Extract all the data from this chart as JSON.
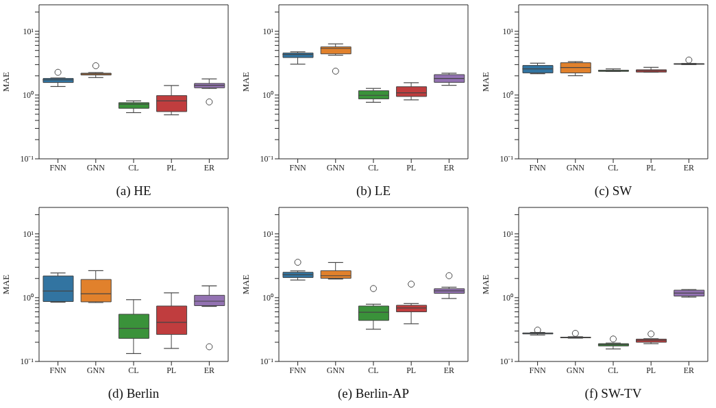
{
  "chart_data": [
    {
      "type": "box",
      "title": "(a) HE",
      "ylabel": "MAE",
      "log": true,
      "categories": [
        "FNN",
        "GNN",
        "CL",
        "PL",
        "ER"
      ],
      "colors": [
        "#3274a1",
        "#e1812c",
        "#3a923a",
        "#c03d3e",
        "#9372b2"
      ],
      "ylim": [
        0.1,
        26
      ],
      "yticks": [
        {
          "value": 0.1,
          "label": "10⁻¹"
        },
        {
          "value": 0.2,
          "label": null
        },
        {
          "value": 0.3,
          "label": null
        },
        {
          "value": 0.4,
          "label": null
        },
        {
          "value": 0.5,
          "label": null
        },
        {
          "value": 0.6,
          "label": null
        },
        {
          "value": 0.7,
          "label": null
        },
        {
          "value": 0.8,
          "label": null
        },
        {
          "value": 0.9,
          "label": null
        },
        {
          "value": 1,
          "label": "10⁰"
        },
        {
          "value": 2,
          "label": null
        },
        {
          "value": 3,
          "label": null
        },
        {
          "value": 4,
          "label": null
        },
        {
          "value": 5,
          "label": null
        },
        {
          "value": 6,
          "label": null
        },
        {
          "value": 7,
          "label": null
        },
        {
          "value": 8,
          "label": null
        },
        {
          "value": 9,
          "label": null
        },
        {
          "value": 10,
          "label": "10¹"
        },
        {
          "value": 20,
          "label": null
        }
      ],
      "boxes": [
        {
          "low": 1.36,
          "q1": 1.57,
          "median": 1.73,
          "q3": 1.82,
          "high": 1.85,
          "outliers": [
            2.27
          ]
        },
        {
          "low": 1.88,
          "q1": 2.06,
          "median": 2.15,
          "q3": 2.2,
          "high": 2.25,
          "outliers": [
            2.88
          ]
        },
        {
          "low": 0.53,
          "q1": 0.62,
          "median": 0.72,
          "q3": 0.76,
          "high": 0.81
        },
        {
          "low": 0.49,
          "q1": 0.55,
          "median": 0.81,
          "q3": 0.98,
          "high": 1.41
        },
        {
          "low": 1.27,
          "q1": 1.3,
          "median": 1.42,
          "q3": 1.52,
          "high": 1.79,
          "outliers": [
            0.78
          ]
        }
      ]
    },
    {
      "type": "box",
      "title": "(b) LE",
      "ylabel": "MAE",
      "log": true,
      "categories": [
        "FNN",
        "GNN",
        "CL",
        "PL",
        "ER"
      ],
      "colors": [
        "#3274a1",
        "#e1812c",
        "#3a923a",
        "#c03d3e",
        "#9372b2"
      ],
      "ylim": [
        0.1,
        26
      ],
      "yticks": [
        {
          "value": 0.1,
          "label": "10⁻¹"
        },
        {
          "value": 0.2,
          "label": null
        },
        {
          "value": 0.3,
          "label": null
        },
        {
          "value": 0.4,
          "label": null
        },
        {
          "value": 0.5,
          "label": null
        },
        {
          "value": 0.6,
          "label": null
        },
        {
          "value": 0.7,
          "label": null
        },
        {
          "value": 0.8,
          "label": null
        },
        {
          "value": 0.9,
          "label": null
        },
        {
          "value": 1,
          "label": "10⁰"
        },
        {
          "value": 2,
          "label": null
        },
        {
          "value": 3,
          "label": null
        },
        {
          "value": 4,
          "label": null
        },
        {
          "value": 5,
          "label": null
        },
        {
          "value": 6,
          "label": null
        },
        {
          "value": 7,
          "label": null
        },
        {
          "value": 8,
          "label": null
        },
        {
          "value": 9,
          "label": null
        },
        {
          "value": 10,
          "label": "10¹"
        },
        {
          "value": 20,
          "label": null
        }
      ],
      "boxes": [
        {
          "low": 3.05,
          "q1": 3.87,
          "median": 4.31,
          "q3": 4.57,
          "high": 4.76
        },
        {
          "low": 4.21,
          "q1": 4.42,
          "median": 5.38,
          "q3": 5.7,
          "high": 6.34,
          "outliers": [
            2.37
          ]
        },
        {
          "low": 0.77,
          "q1": 0.87,
          "median": 0.99,
          "q3": 1.17,
          "high": 1.27
        },
        {
          "low": 0.84,
          "q1": 0.95,
          "median": 1.08,
          "q3": 1.35,
          "high": 1.56
        },
        {
          "low": 1.42,
          "q1": 1.58,
          "median": 1.82,
          "q3": 2.09,
          "high": 2.2
        }
      ]
    },
    {
      "type": "box",
      "title": "(c) SW",
      "ylabel": "MAE",
      "log": true,
      "categories": [
        "FNN",
        "GNN",
        "CL",
        "PL",
        "ER"
      ],
      "colors": [
        "#3274a1",
        "#e1812c",
        "#3a923a",
        "#c03d3e",
        "#9372b2"
      ],
      "ylim": [
        0.1,
        26
      ],
      "yticks": [
        {
          "value": 0.1,
          "label": "10⁻¹"
        },
        {
          "value": 0.2,
          "label": null
        },
        {
          "value": 0.3,
          "label": null
        },
        {
          "value": 0.4,
          "label": null
        },
        {
          "value": 0.5,
          "label": null
        },
        {
          "value": 0.6,
          "label": null
        },
        {
          "value": 0.7,
          "label": null
        },
        {
          "value": 0.8,
          "label": null
        },
        {
          "value": 0.9,
          "label": null
        },
        {
          "value": 1,
          "label": "10⁰"
        },
        {
          "value": 2,
          "label": null
        },
        {
          "value": 3,
          "label": null
        },
        {
          "value": 4,
          "label": null
        },
        {
          "value": 5,
          "label": null
        },
        {
          "value": 6,
          "label": null
        },
        {
          "value": 7,
          "label": null
        },
        {
          "value": 8,
          "label": null
        },
        {
          "value": 9,
          "label": null
        },
        {
          "value": 10,
          "label": "10¹"
        },
        {
          "value": 20,
          "label": null
        }
      ],
      "boxes": [
        {
          "low": 2.16,
          "q1": 2.22,
          "median": 2.57,
          "q3": 2.91,
          "high": 3.16
        },
        {
          "low": 2.01,
          "q1": 2.22,
          "median": 2.7,
          "q3": 3.21,
          "high": 3.34
        },
        {
          "low": 2.34,
          "q1": 2.35,
          "median": 2.41,
          "q3": 2.45,
          "high": 2.57
        },
        {
          "low": 2.28,
          "q1": 2.29,
          "median": 2.41,
          "q3": 2.49,
          "high": 2.72
        },
        {
          "low": 3.0,
          "q1": 3.03,
          "median": 3.08,
          "q3": 3.1,
          "high": 3.13,
          "outliers": [
            3.54
          ]
        }
      ]
    },
    {
      "type": "box",
      "title": "(d) Berlin",
      "ylabel": "MAE",
      "log": true,
      "categories": [
        "FNN",
        "GNN",
        "CL",
        "PL",
        "ER"
      ],
      "colors": [
        "#3274a1",
        "#e1812c",
        "#3a923a",
        "#c03d3e",
        "#9372b2"
      ],
      "ylim": [
        0.1,
        26
      ],
      "yticks": [
        {
          "value": 0.1,
          "label": "10⁻¹"
        },
        {
          "value": 0.2,
          "label": null
        },
        {
          "value": 0.3,
          "label": null
        },
        {
          "value": 0.4,
          "label": null
        },
        {
          "value": 0.5,
          "label": null
        },
        {
          "value": 0.6,
          "label": null
        },
        {
          "value": 0.7,
          "label": null
        },
        {
          "value": 0.8,
          "label": null
        },
        {
          "value": 0.9,
          "label": null
        },
        {
          "value": 1,
          "label": "10⁰"
        },
        {
          "value": 2,
          "label": null
        },
        {
          "value": 3,
          "label": null
        },
        {
          "value": 4,
          "label": null
        },
        {
          "value": 5,
          "label": null
        },
        {
          "value": 6,
          "label": null
        },
        {
          "value": 7,
          "label": null
        },
        {
          "value": 8,
          "label": null
        },
        {
          "value": 9,
          "label": null
        },
        {
          "value": 10,
          "label": "10¹"
        },
        {
          "value": 20,
          "label": null
        }
      ],
      "boxes": [
        {
          "low": 0.85,
          "q1": 0.87,
          "median": 1.27,
          "q3": 2.19,
          "high": 2.44
        },
        {
          "low": 0.84,
          "q1": 0.86,
          "median": 1.15,
          "q3": 1.93,
          "high": 2.65
        },
        {
          "low": 0.133,
          "q1": 0.23,
          "median": 0.33,
          "q3": 0.55,
          "high": 0.93
        },
        {
          "low": 0.16,
          "q1": 0.265,
          "median": 0.41,
          "q3": 0.74,
          "high": 1.19
        },
        {
          "low": 0.73,
          "q1": 0.75,
          "median": 0.88,
          "q3": 1.09,
          "high": 1.53,
          "outliers": [
            0.17
          ]
        }
      ]
    },
    {
      "type": "box",
      "title": "(e) Berlin-AP",
      "ylabel": "MAE",
      "log": true,
      "categories": [
        "FNN",
        "GNN",
        "CL",
        "PL",
        "ER"
      ],
      "colors": [
        "#3274a1",
        "#e1812c",
        "#3a923a",
        "#c03d3e",
        "#9372b2"
      ],
      "ylim": [
        0.1,
        26
      ],
      "yticks": [
        {
          "value": 0.1,
          "label": "10⁻¹"
        },
        {
          "value": 0.2,
          "label": null
        },
        {
          "value": 0.3,
          "label": null
        },
        {
          "value": 0.4,
          "label": null
        },
        {
          "value": 0.5,
          "label": null
        },
        {
          "value": 0.6,
          "label": null
        },
        {
          "value": 0.7,
          "label": null
        },
        {
          "value": 0.8,
          "label": null
        },
        {
          "value": 0.9,
          "label": null
        },
        {
          "value": 1,
          "label": "10⁰"
        },
        {
          "value": 2,
          "label": null
        },
        {
          "value": 3,
          "label": null
        },
        {
          "value": 4,
          "label": null
        },
        {
          "value": 5,
          "label": null
        },
        {
          "value": 6,
          "label": null
        },
        {
          "value": 7,
          "label": null
        },
        {
          "value": 8,
          "label": null
        },
        {
          "value": 9,
          "label": null
        },
        {
          "value": 10,
          "label": "10¹"
        },
        {
          "value": 20,
          "label": null
        }
      ],
      "boxes": [
        {
          "low": 1.89,
          "q1": 2.07,
          "median": 2.29,
          "q3": 2.5,
          "high": 2.63,
          "outliers": [
            3.59
          ]
        },
        {
          "low": 1.96,
          "q1": 2.01,
          "median": 2.21,
          "q3": 2.65,
          "high": 3.56
        },
        {
          "low": 0.32,
          "q1": 0.44,
          "median": 0.59,
          "q3": 0.74,
          "high": 0.79,
          "outliers": [
            1.39
          ]
        },
        {
          "low": 0.39,
          "q1": 0.6,
          "median": 0.69,
          "q3": 0.76,
          "high": 0.81,
          "outliers": [
            1.63
          ]
        },
        {
          "low": 0.97,
          "q1": 1.17,
          "median": 1.28,
          "q3": 1.38,
          "high": 1.46,
          "outliers": [
            2.21
          ]
        }
      ]
    },
    {
      "type": "box",
      "title": "(f) SW-TV",
      "ylabel": "MAE",
      "log": true,
      "categories": [
        "FNN",
        "GNN",
        "CL",
        "PL",
        "ER"
      ],
      "colors": [
        "#3274a1",
        "#e1812c",
        "#3a923a",
        "#c03d3e",
        "#9372b2"
      ],
      "ylim": [
        0.1,
        26
      ],
      "yticks": [
        {
          "value": 0.1,
          "label": "10⁻¹"
        },
        {
          "value": 0.2,
          "label": null
        },
        {
          "value": 0.3,
          "label": null
        },
        {
          "value": 0.4,
          "label": null
        },
        {
          "value": 0.5,
          "label": null
        },
        {
          "value": 0.6,
          "label": null
        },
        {
          "value": 0.7,
          "label": null
        },
        {
          "value": 0.8,
          "label": null
        },
        {
          "value": 0.9,
          "label": null
        },
        {
          "value": 1,
          "label": "10⁰"
        },
        {
          "value": 2,
          "label": null
        },
        {
          "value": 3,
          "label": null
        },
        {
          "value": 4,
          "label": null
        },
        {
          "value": 5,
          "label": null
        },
        {
          "value": 6,
          "label": null
        },
        {
          "value": 7,
          "label": null
        },
        {
          "value": 8,
          "label": null
        },
        {
          "value": 9,
          "label": null
        },
        {
          "value": 10,
          "label": "10¹"
        },
        {
          "value": 20,
          "label": null
        }
      ],
      "boxes": [
        {
          "low": 0.26,
          "q1": 0.27,
          "median": 0.275,
          "q3": 0.28,
          "high": 0.285,
          "outliers": [
            0.31
          ]
        },
        {
          "low": 0.232,
          "q1": 0.235,
          "median": 0.238,
          "q3": 0.24,
          "high": 0.244,
          "outliers": [
            0.276
          ]
        },
        {
          "low": 0.157,
          "q1": 0.175,
          "median": 0.184,
          "q3": 0.19,
          "high": 0.194,
          "outliers": [
            0.225
          ]
        },
        {
          "low": 0.19,
          "q1": 0.2,
          "median": 0.214,
          "q3": 0.224,
          "high": 0.227,
          "outliers": [
            0.27
          ]
        },
        {
          "low": 1.02,
          "q1": 1.06,
          "median": 1.18,
          "q3": 1.31,
          "high": 1.34
        }
      ]
    }
  ]
}
